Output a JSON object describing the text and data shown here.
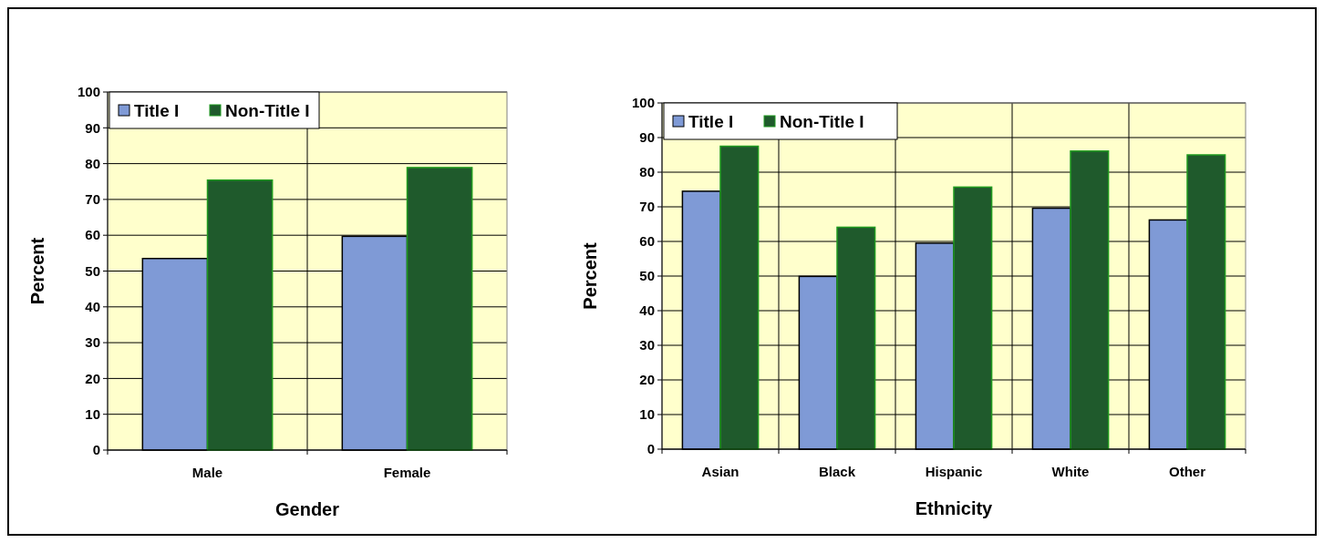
{
  "chart_data": [
    {
      "type": "bar",
      "categories": [
        "Male",
        "Female"
      ],
      "xlabel": "Gender",
      "ylabel": "Percent",
      "ylim": [
        0,
        100
      ],
      "yticks": [
        0,
        10,
        20,
        30,
        40,
        50,
        60,
        70,
        80,
        90,
        100
      ],
      "grid": true,
      "legend": "top left",
      "series": [
        {
          "name": "Title I",
          "color": "#7f9ad6",
          "values": [
            53.5,
            59.7
          ]
        },
        {
          "name": "Non-Title I",
          "color": "#1f5a2c",
          "values": [
            75.4,
            78.9
          ]
        }
      ]
    },
    {
      "type": "bar",
      "categories": [
        "Asian",
        "Black",
        "Hispanic",
        "White",
        "Other"
      ],
      "xlabel": "Ethnicity",
      "ylabel": "Percent",
      "ylim": [
        0,
        100
      ],
      "yticks": [
        0,
        10,
        20,
        30,
        40,
        50,
        60,
        70,
        80,
        90,
        100
      ],
      "grid": true,
      "legend": "top left",
      "series": [
        {
          "name": "Title I",
          "color": "#7f9ad6",
          "values": [
            74.5,
            49.9,
            59.5,
            69.6,
            66.2
          ]
        },
        {
          "name": "Non-Title I",
          "color": "#1f5a2c",
          "values": [
            87.5,
            64.1,
            75.7,
            86.1,
            85.0
          ]
        }
      ]
    }
  ]
}
